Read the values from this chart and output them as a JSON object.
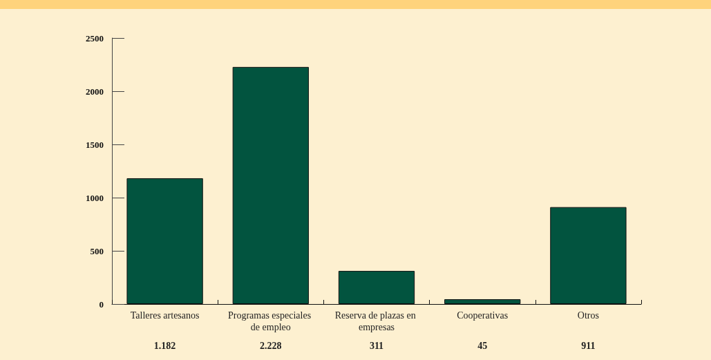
{
  "chart_data": {
    "type": "bar",
    "categories": [
      "Talleres artesanos",
      "Programas especiales de empleo",
      "Reserva de plazas en empresas",
      "Cooperativas",
      "Otros"
    ],
    "values": [
      1182,
      2228,
      311,
      45,
      911
    ],
    "value_labels": [
      "1.182",
      "2.228",
      "311",
      "45",
      "911"
    ],
    "color": "#02543f",
    "ylim": [
      0,
      2500
    ],
    "yticks": [
      0,
      500,
      1000,
      1500,
      2000,
      2500
    ],
    "grid": false
  }
}
